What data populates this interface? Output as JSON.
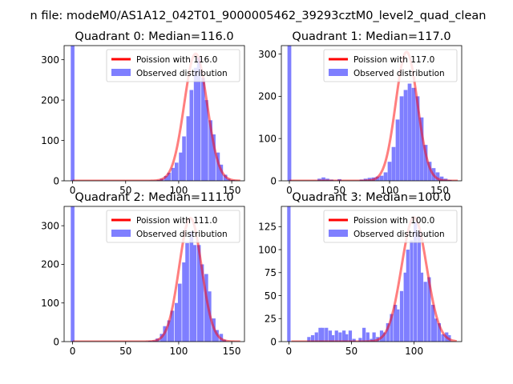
{
  "figure": {
    "suptitle": "n file: modeM0/AS1A12_042T01_9000005462_39293cztM0_level2_quad_clean"
  },
  "colors": {
    "observed": "#7f7fff",
    "poisson": "#ff0000",
    "poisson_alpha": 0.5
  },
  "chart_data": [
    {
      "type": "bar",
      "title": "Quadrant 0: Median=116.0",
      "xlim": [
        -8,
        162
      ],
      "ylim": [
        0,
        335
      ],
      "xticks": [
        0,
        50,
        100,
        150
      ],
      "yticks": [
        0,
        100,
        200,
        300
      ],
      "legend": [
        "Poission with 116.0",
        "Observed distribution"
      ],
      "legend_position": "top-right",
      "median": 116.0,
      "curve_peak": 315,
      "bin_width": 3.5,
      "bins": [
        [
          0,
          335
        ],
        [
          74,
          1
        ],
        [
          77,
          1
        ],
        [
          81,
          2
        ],
        [
          84,
          5
        ],
        [
          88,
          12
        ],
        [
          91,
          20
        ],
        [
          95,
          32
        ],
        [
          98,
          45
        ],
        [
          102,
          70
        ],
        [
          105,
          110
        ],
        [
          109,
          160
        ],
        [
          112,
          225
        ],
        [
          116,
          280
        ],
        [
          119,
          305
        ],
        [
          123,
          255
        ],
        [
          126,
          200
        ],
        [
          130,
          150
        ],
        [
          133,
          115
        ],
        [
          137,
          70
        ],
        [
          140,
          40
        ],
        [
          144,
          15
        ],
        [
          147,
          5
        ],
        [
          151,
          2
        ],
        [
          154,
          1
        ]
      ]
    },
    {
      "type": "bar",
      "title": "Quadrant 1: Median=117.0",
      "xlim": [
        -8,
        172
      ],
      "ylim": [
        0,
        320
      ],
      "xticks": [
        0,
        50,
        100,
        150
      ],
      "yticks": [
        0,
        100,
        200,
        300
      ],
      "legend": [
        "Poission with 117.0",
        "Observed distribution"
      ],
      "legend_position": "top-right",
      "median": 117.0,
      "curve_peak": 305,
      "bin_width": 3.8,
      "bins": [
        [
          0,
          320
        ],
        [
          30,
          5
        ],
        [
          34,
          8
        ],
        [
          38,
          5
        ],
        [
          42,
          3
        ],
        [
          50,
          4
        ],
        [
          72,
          3
        ],
        [
          76,
          5
        ],
        [
          80,
          7
        ],
        [
          84,
          8
        ],
        [
          88,
          10
        ],
        [
          92,
          12
        ],
        [
          96,
          20
        ],
        [
          100,
          45
        ],
        [
          104,
          80
        ],
        [
          108,
          145
        ],
        [
          112,
          200
        ],
        [
          116,
          215
        ],
        [
          120,
          230
        ],
        [
          124,
          220
        ],
        [
          128,
          200
        ],
        [
          132,
          150
        ],
        [
          136,
          85
        ],
        [
          140,
          45
        ],
        [
          144,
          30
        ],
        [
          148,
          20
        ],
        [
          152,
          10
        ],
        [
          156,
          5
        ],
        [
          160,
          2
        ]
      ]
    },
    {
      "type": "bar",
      "title": "Quadrant 2: Median=111.0",
      "xlim": [
        -8,
        162
      ],
      "ylim": [
        0,
        350
      ],
      "xticks": [
        0,
        50,
        100,
        150
      ],
      "yticks": [
        0,
        100,
        200,
        300
      ],
      "legend": [
        "Poission with 111.0",
        "Observed distribution"
      ],
      "legend_position": "top-right",
      "median": 111.0,
      "curve_peak": 320,
      "bin_width": 3.5,
      "bins": [
        [
          0,
          350
        ],
        [
          70,
          1
        ],
        [
          73,
          2
        ],
        [
          77,
          3
        ],
        [
          80,
          8
        ],
        [
          84,
          20
        ],
        [
          87,
          40
        ],
        [
          91,
          55
        ],
        [
          94,
          80
        ],
        [
          98,
          100
        ],
        [
          101,
          150
        ],
        [
          105,
          205
        ],
        [
          108,
          255
        ],
        [
          112,
          285
        ],
        [
          115,
          250
        ],
        [
          119,
          250
        ],
        [
          122,
          200
        ],
        [
          126,
          175
        ],
        [
          129,
          130
        ],
        [
          133,
          60
        ],
        [
          136,
          30
        ],
        [
          140,
          20
        ],
        [
          143,
          5
        ]
      ]
    },
    {
      "type": "bar",
      "title": "Quadrant 3: Median=100.0",
      "xlim": [
        -6,
        138
      ],
      "ylim": [
        0,
        147
      ],
      "xticks": [
        0,
        50,
        100
      ],
      "yticks": [
        0,
        25,
        50,
        75,
        100,
        125
      ],
      "legend": [
        "Poission with 100.0",
        "Observed distribution"
      ],
      "legend_position": "top-right",
      "median": 100.0,
      "curve_peak": 135,
      "bin_width": 2.7,
      "bins": [
        [
          0,
          147
        ],
        [
          16,
          5
        ],
        [
          19,
          7
        ],
        [
          22,
          10
        ],
        [
          25,
          15
        ],
        [
          27,
          15
        ],
        [
          30,
          15
        ],
        [
          33,
          12
        ],
        [
          35,
          7
        ],
        [
          38,
          12
        ],
        [
          41,
          10
        ],
        [
          44,
          12
        ],
        [
          46,
          8
        ],
        [
          49,
          12
        ],
        [
          52,
          3
        ],
        [
          57,
          4
        ],
        [
          60,
          15
        ],
        [
          63,
          10
        ],
        [
          66,
          3
        ],
        [
          68,
          10
        ],
        [
          71,
          5
        ],
        [
          74,
          12
        ],
        [
          76,
          10
        ],
        [
          79,
          20
        ],
        [
          82,
          30
        ],
        [
          85,
          40
        ],
        [
          87,
          35
        ],
        [
          90,
          55
        ],
        [
          93,
          75
        ],
        [
          95,
          100
        ],
        [
          98,
          110
        ],
        [
          101,
          130
        ],
        [
          104,
          120
        ],
        [
          106,
          75
        ],
        [
          109,
          65
        ],
        [
          112,
          70
        ],
        [
          115,
          40
        ],
        [
          117,
          25
        ],
        [
          120,
          20
        ],
        [
          123,
          8
        ],
        [
          126,
          10
        ],
        [
          128,
          7
        ]
      ]
    }
  ]
}
